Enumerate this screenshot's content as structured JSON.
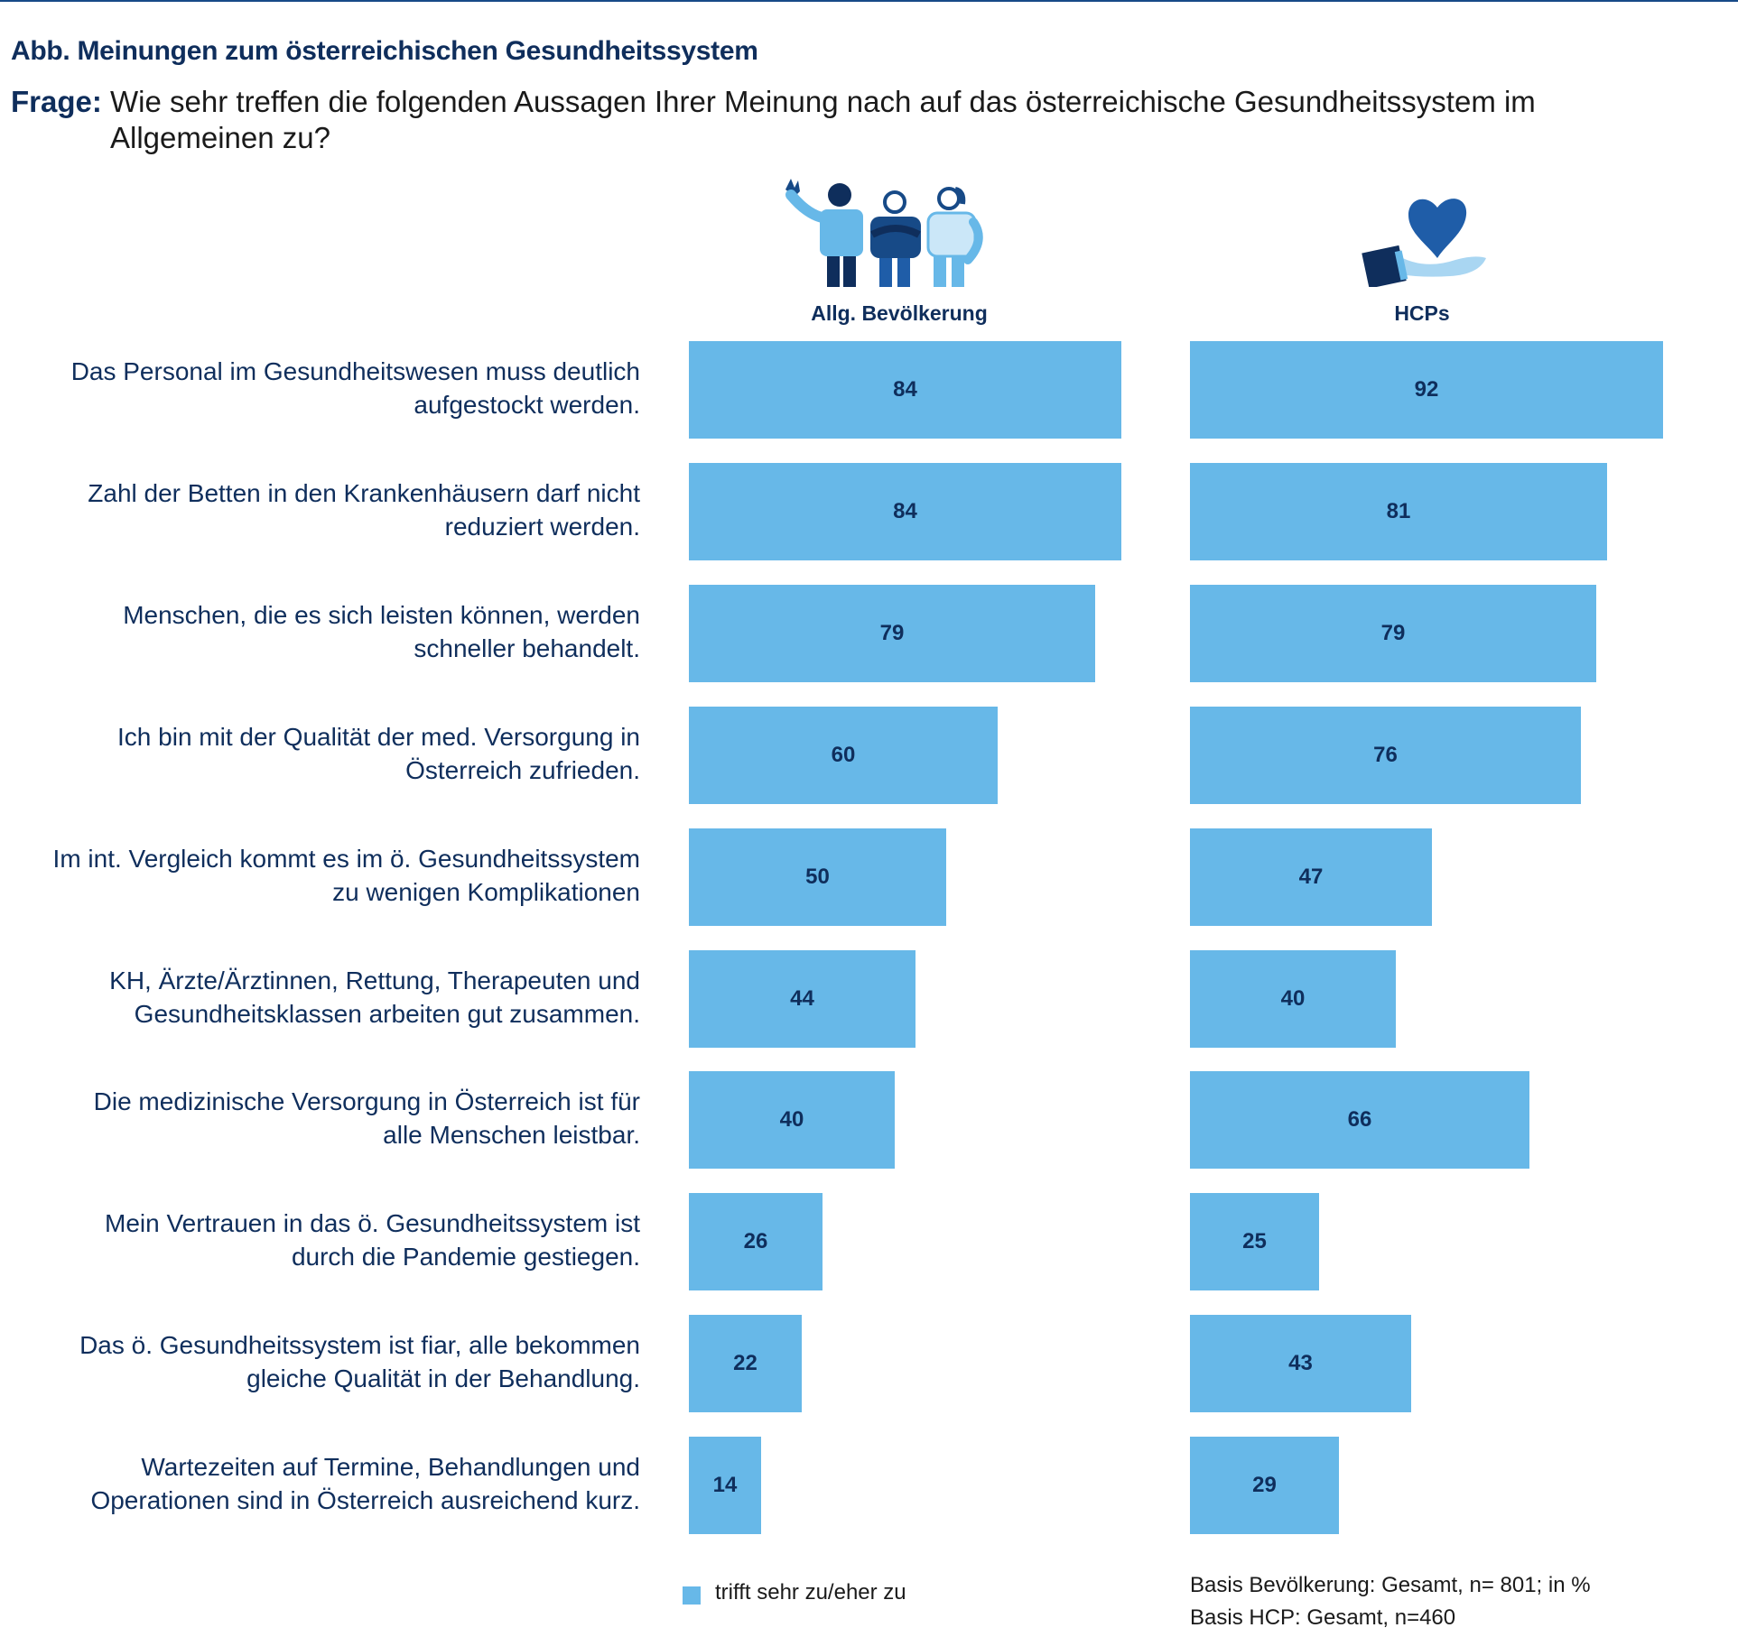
{
  "header": {
    "title": "Abb. Meinungen zum österreichischen Gesundheitssystem",
    "question_label": "Frage:",
    "question_line1": "Wie sehr treffen die folgenden Aussagen Ihrer Meinung nach auf das österreichische Gesundheitssystem im",
    "question_line2": "Allgemeinen zu?"
  },
  "colors": {
    "bar": "#67b8e8",
    "text_dark": "#0f2e5c",
    "rule": "#174a87"
  },
  "chart_data": {
    "type": "bar",
    "orientation": "horizontal",
    "unit": "%",
    "categories": [
      "Das Personal im Gesundheitswesen muss deutlich\naufgestockt werden.",
      "Zahl der Betten in den Krankenhäusern darf nicht\nreduziert werden.",
      "Menschen, die es sich leisten können, werden\nschneller behandelt.",
      "Ich bin mit der Qualität der med. Versorgung in\nÖsterreich zufrieden.",
      "Im int. Vergleich kommt es im ö. Gesundheitssystem\nzu wenigen Komplikationen",
      "KH, Ärzte/Ärztinnen, Rettung, Therapeuten und\nGesundheitsklassen arbeiten gut zusammen.",
      "Die medizinische Versorgung in Österreich ist für\nalle Menschen leistbar.",
      "Mein Vertrauen in das ö. Gesundheitssystem ist\ndurch die Pandemie gestiegen.",
      "Das ö. Gesundheitssystem ist fiar, alle bekommen\ngleiche Qualität in der Behandlung.",
      "Wartezeiten auf Termine, Behandlungen und\nOperationen sind in Österreich ausreichend kurz."
    ],
    "series": [
      {
        "name": "Allg. Bevölkerung",
        "icon": "people-group-icon",
        "values": [
          84,
          84,
          79,
          60,
          50,
          44,
          40,
          26,
          22,
          14
        ]
      },
      {
        "name": "HCPs",
        "icon": "hand-heart-icon",
        "values": [
          92,
          81,
          79,
          76,
          47,
          40,
          66,
          25,
          43,
          29
        ]
      }
    ],
    "xlim": [
      0,
      100
    ],
    "legend": {
      "label": "trifft sehr zu/eher zu",
      "position": "bottom"
    }
  },
  "footer": {
    "basis_line1": "Basis Bevölkerung: Gesamt, n= 801; in %",
    "basis_line2": "Basis HCP: Gesamt, n=460"
  }
}
